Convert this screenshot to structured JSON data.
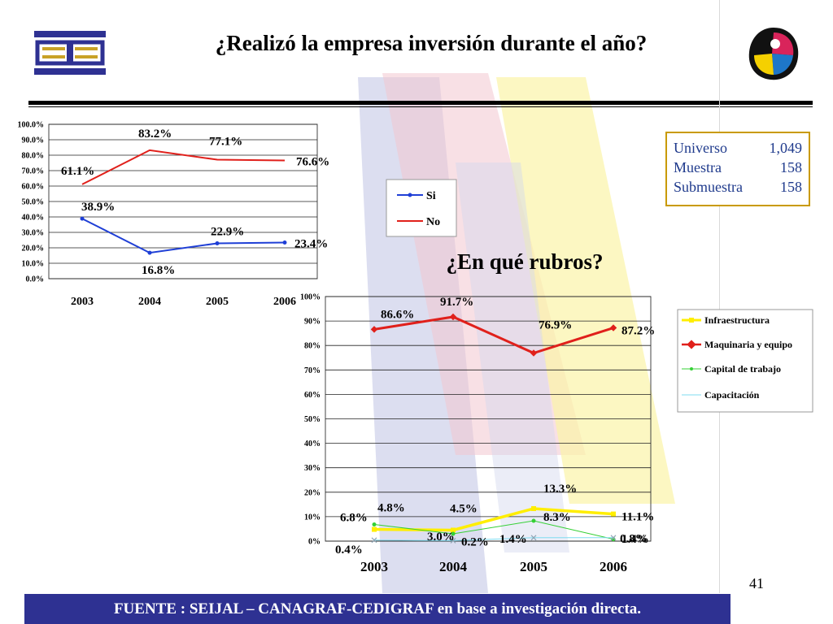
{
  "title": "¿Realizó la empresa inversión durante el año?",
  "subtitle": "¿En qué rubros?",
  "sample_box": {
    "rows": [
      {
        "label": "Universo",
        "value": "1,049"
      },
      {
        "label": "Muestra",
        "value": "158"
      },
      {
        "label": "Submuestra",
        "value": "158"
      }
    ]
  },
  "page_number": "41",
  "footer": "FUENTE :  SEIJAL – CANAGRAF-CEDIGRAF en base a investigación directa.",
  "colors": {
    "si": "#1f3fd6",
    "no": "#e0201b",
    "infraestructura": "#ffee00",
    "maquinaria": "#e0201b",
    "capital": "#35d035",
    "capacitacion": "#7fdcf0",
    "footer_bg": "#2e3192",
    "box_border": "#c99a00"
  },
  "chart_data": [
    {
      "type": "line",
      "categories": [
        "2003",
        "2004",
        "2005",
        "2006"
      ],
      "ylim": [
        0,
        100
      ],
      "y_ticks": [
        "0.0%",
        "10.0%",
        "20.0%",
        "30.0%",
        "40.0%",
        "50.0%",
        "60.0%",
        "70.0%",
        "80.0%",
        "90.0%",
        "100.0%"
      ],
      "legend_position": "right",
      "series": [
        {
          "name": "Si",
          "color_key": "si",
          "values": [
            38.9,
            16.8,
            22.9,
            23.4
          ],
          "labels": [
            "38.9%",
            "16.8%",
            "22.9%",
            "23.4%"
          ]
        },
        {
          "name": "No",
          "color_key": "no",
          "values": [
            61.1,
            83.2,
            77.1,
            76.6
          ],
          "labels": [
            "61.1%",
            "83.2%",
            "77.1%",
            "76.6%"
          ]
        }
      ]
    },
    {
      "type": "line",
      "categories": [
        "2003",
        "2004",
        "2005",
        "2006"
      ],
      "ylim": [
        0,
        100
      ],
      "y_ticks": [
        "0%",
        "10%",
        "20%",
        "30%",
        "40%",
        "50%",
        "60%",
        "70%",
        "80%",
        "90%",
        "100%"
      ],
      "legend_position": "right",
      "series": [
        {
          "name": "Infraestructura",
          "color_key": "infraestructura",
          "values": [
            4.8,
            4.5,
            13.3,
            11.1
          ],
          "labels": [
            "4.8%",
            "4.5%",
            "13.3%",
            "11.1%"
          ]
        },
        {
          "name": "Maquinaria y equipo",
          "color_key": "maquinaria",
          "values": [
            86.6,
            91.7,
            76.9,
            87.2
          ],
          "labels": [
            "86.6%",
            "91.7%",
            "76.9%",
            "87.2%"
          ]
        },
        {
          "name": "Capital de trabajo",
          "color_key": "capital",
          "values": [
            6.8,
            3.0,
            8.3,
            0.8
          ],
          "labels": [
            "6.8%",
            "3.0%",
            "8.3%",
            "0.8%"
          ]
        },
        {
          "name": "Capacitación",
          "color_key": "capacitacion",
          "values": [
            0.4,
            0.2,
            1.4,
            1.4
          ],
          "labels": [
            "0.4%",
            "0.2%",
            "1.4%",
            "1.4%"
          ]
        }
      ]
    }
  ]
}
